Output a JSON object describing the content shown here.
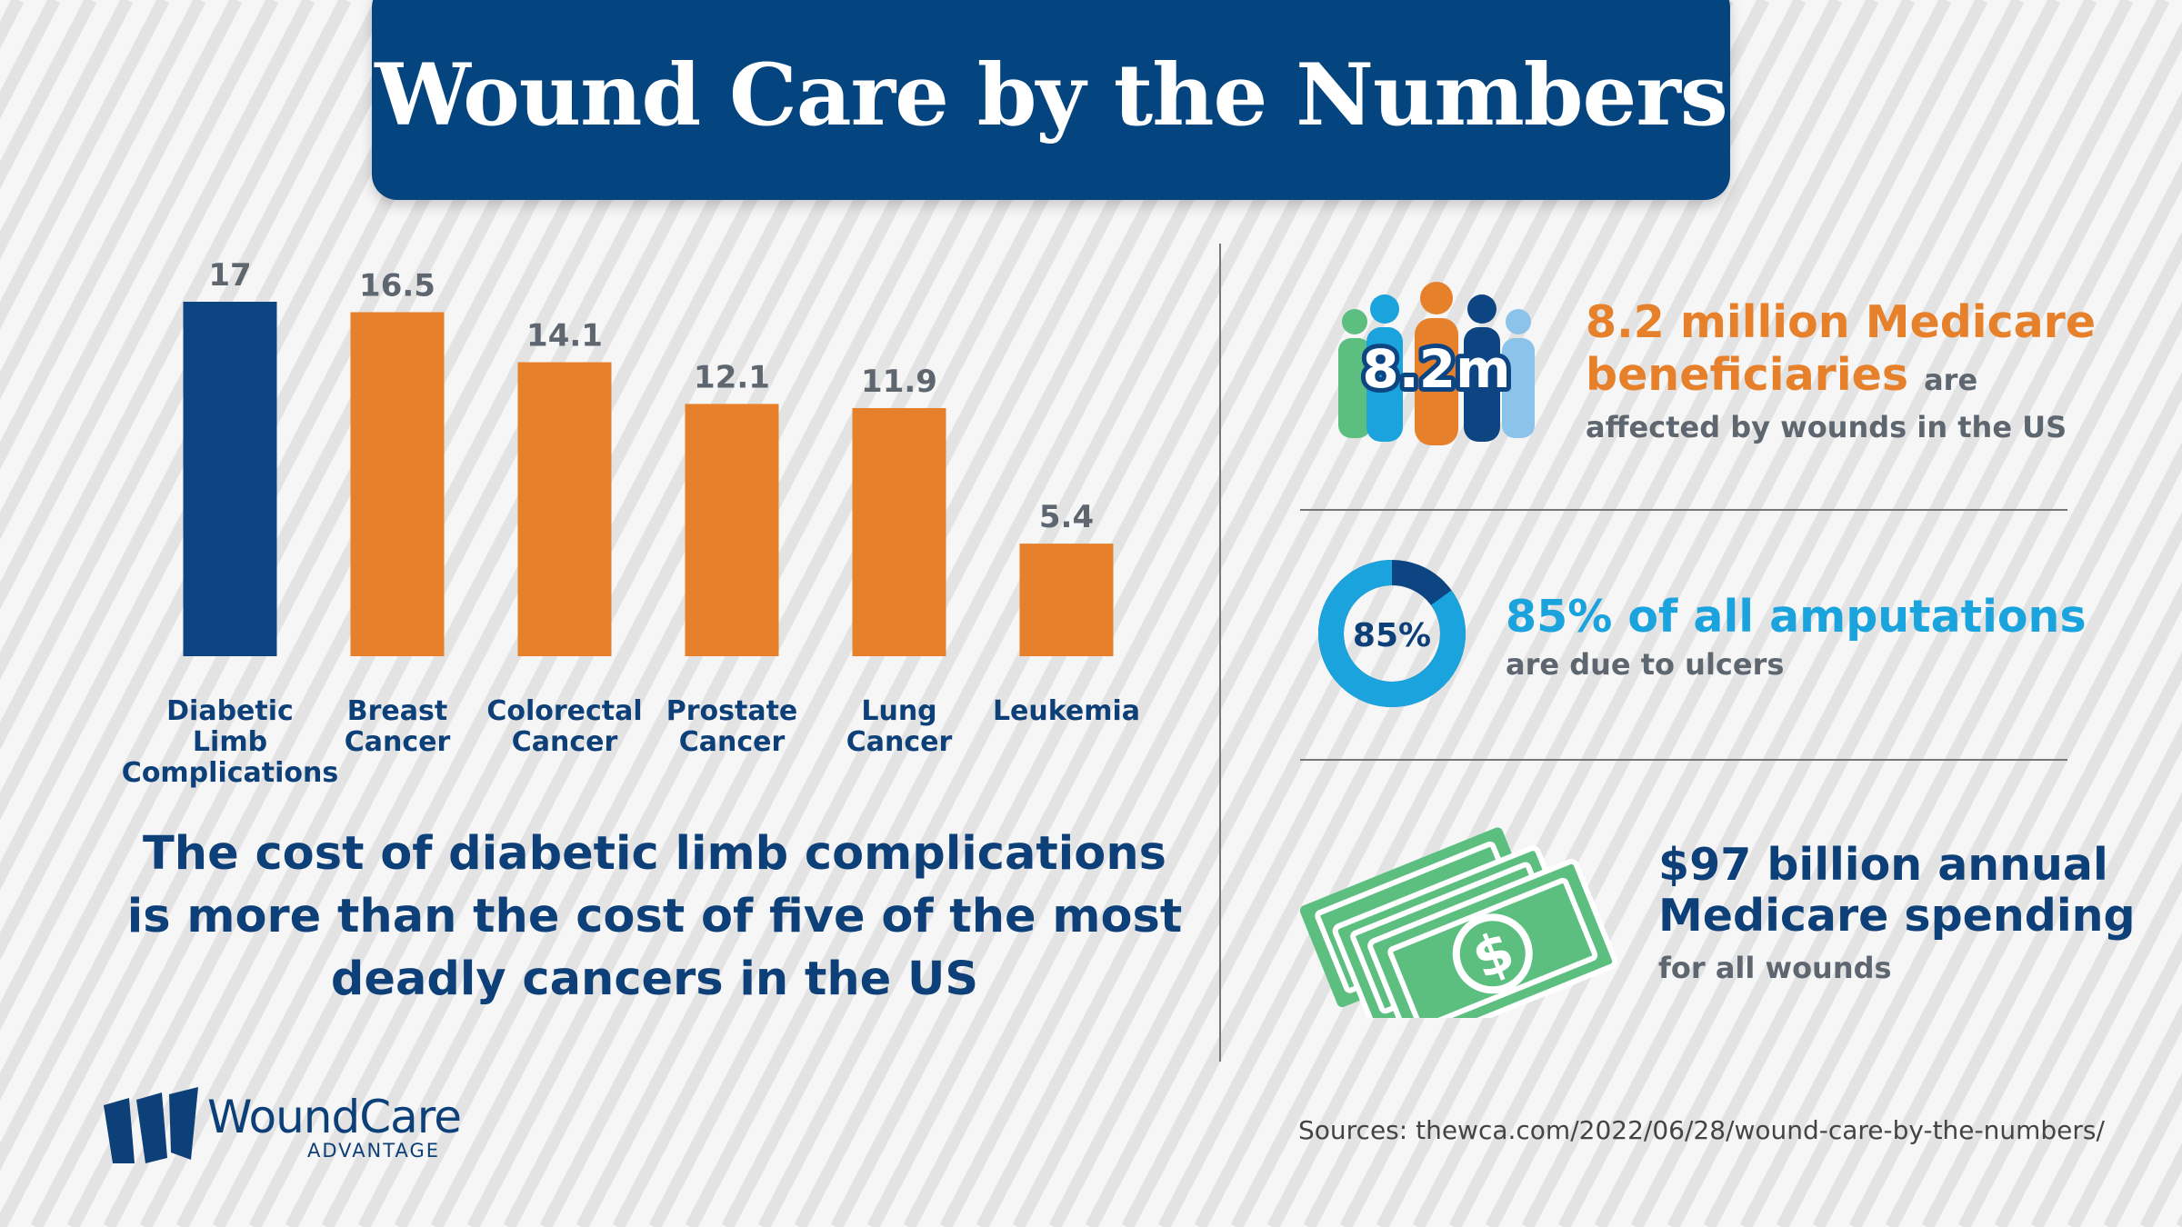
{
  "title": "Wound Care by the Numbers",
  "chart_data": {
    "type": "bar",
    "categories": [
      "Diabetic Limb Complications",
      "Breast Cancer",
      "Colorectal Cancer",
      "Prostate Cancer",
      "Lung Cancer",
      "Leukemia"
    ],
    "category_lines": [
      [
        "Diabetic",
        "Limb",
        "Complications"
      ],
      [
        "Breast",
        "Cancer"
      ],
      [
        "Colorectal",
        "Cancer"
      ],
      [
        "Prostate",
        "Cancer"
      ],
      [
        "Lung",
        "Cancer"
      ],
      [
        "Leukemia"
      ]
    ],
    "values": [
      17,
      16.5,
      14.1,
      12.1,
      11.9,
      5.4
    ],
    "value_labels": [
      "17",
      "16.5",
      "14.1",
      "12.1",
      "11.9",
      "5.4"
    ],
    "bar_colors": [
      "#0d4583",
      "#e6802a",
      "#e6802a",
      "#e6802a",
      "#e6802a",
      "#e6802a"
    ],
    "ylim": [
      0,
      17
    ],
    "grid": false,
    "title": "",
    "xlabel": "",
    "ylabel": ""
  },
  "caption": {
    "lines": [
      "The cost of diabetic limb complications",
      "is more than the cost of five of the most",
      "deadly cancers in the US"
    ]
  },
  "stats": {
    "beneficiaries": {
      "icon_label": "8.2m",
      "head_line1": "8.2 million Medicare",
      "head_line2": "beneficiaries",
      "head_tail": "are",
      "sub": "affected by wounds in the US"
    },
    "amputations": {
      "donut_label": "85%",
      "percent": 85,
      "head": "85% of all amputations",
      "sub": "are due to ulcers"
    },
    "spending": {
      "icon": "money-icon",
      "dollar_symbol": "$",
      "head_line1": "$97 billion annual",
      "head_line2": "Medicare spending",
      "sub": "for all wounds"
    }
  },
  "sources": "Sources: thewca.com/2022/06/28/wound-care-by-the-numbers/",
  "logo": {
    "name": "WoundCare",
    "tagline": "ADVANTAGE"
  },
  "colors": {
    "navy": "#044580",
    "orange": "#e6802a",
    "cyan": "#1aa3dd",
    "green": "#5cbf80",
    "light_blue": "#8cc3ea",
    "gray_text": "#5e6670"
  }
}
